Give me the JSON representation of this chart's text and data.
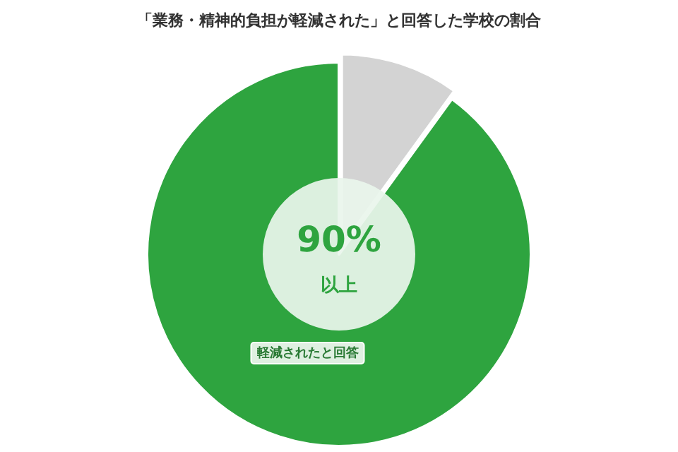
{
  "chart_data": {
    "type": "donut",
    "title": "「業務・精神的負担が軽減された」と回答した学校の割合",
    "categories": [
      null,
      "軽減されたと回答"
    ],
    "values": [
      10,
      90
    ],
    "colors": [
      "#d3d3d3",
      "#2ea43f"
    ],
    "annotations": [
      "90%",
      "以上"
    ]
  }
}
